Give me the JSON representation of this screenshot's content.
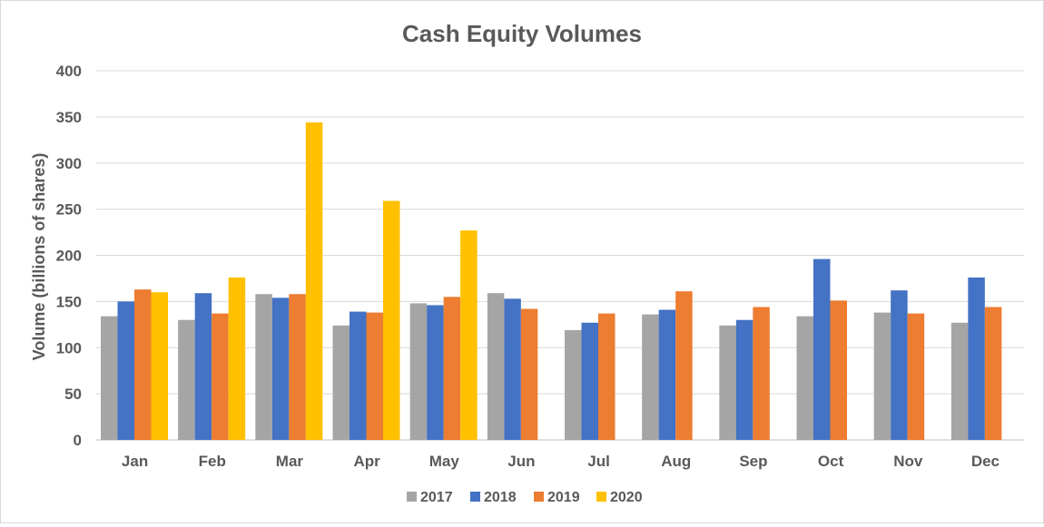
{
  "chart_data": {
    "type": "bar",
    "title": "Cash Equity Volumes",
    "xlabel": "",
    "ylabel": "Volume (billions of shares)",
    "ylim": [
      0,
      400
    ],
    "yticks": [
      "0",
      "50",
      "100",
      "150",
      "200",
      "250",
      "300",
      "350",
      "400"
    ],
    "grid": true,
    "legend_position": "bottom",
    "categories": [
      "Jan",
      "Feb",
      "Mar",
      "Apr",
      "May",
      "Jun",
      "Jul",
      "Aug",
      "Sep",
      "Oct",
      "Nov",
      "Dec"
    ],
    "series": [
      {
        "name": "2017",
        "color": "#a5a5a5",
        "values": [
          134,
          130,
          158,
          124,
          148,
          159,
          119,
          136,
          124,
          134,
          138,
          127
        ]
      },
      {
        "name": "2018",
        "color": "#4472c4",
        "values": [
          150,
          159,
          154,
          139,
          146,
          153,
          127,
          141,
          130,
          196,
          162,
          176
        ]
      },
      {
        "name": "2019",
        "color": "#ed7d31",
        "values": [
          163,
          137,
          158,
          138,
          155,
          142,
          137,
          161,
          144,
          151,
          137,
          144
        ]
      },
      {
        "name": "2020",
        "color": "#ffc000",
        "values": [
          160,
          176,
          344,
          259,
          227,
          null,
          null,
          null,
          null,
          null,
          null,
          null
        ]
      }
    ]
  }
}
